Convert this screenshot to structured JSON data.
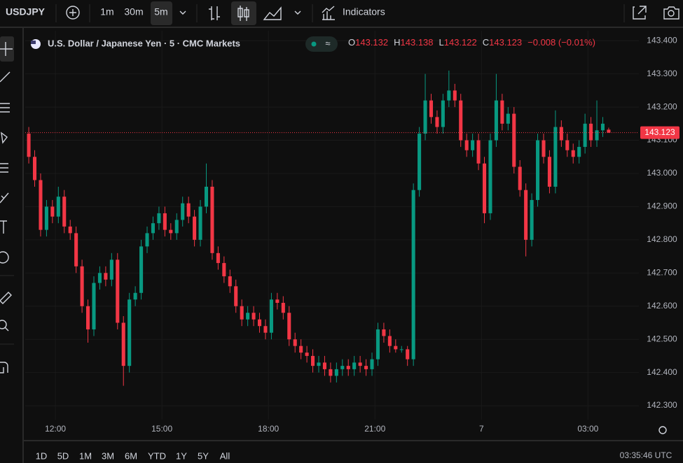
{
  "ui": {
    "symbol": "USDJPY",
    "intervals": [
      "1m",
      "30m",
      "5m"
    ],
    "indicators": "Indicators",
    "ranges": [
      "1D",
      "5D",
      "1M",
      "3M",
      "6M",
      "YTD",
      "1Y",
      "5Y",
      "All"
    ],
    "clock": "03:35:46 UTC"
  },
  "chart_data": {
    "type": "candlestick",
    "title": "U.S. Dollar / Japanese Yen · 5 · CMC Markets",
    "legend": {
      "open_label": "O",
      "open": 143.132,
      "high_label": "H",
      "high": 143.138,
      "low_label": "L",
      "low": 143.122,
      "close_label": "C",
      "close": 143.123,
      "change": "−0.008 (−0.01%)"
    },
    "last_price": 143.123,
    "up_color": "#089981",
    "down_color": "#f23645",
    "x": [
      675,
      685,
      695,
      705,
      715,
      725,
      735,
      745,
      755,
      765,
      775,
      785,
      795,
      805,
      815,
      825,
      835,
      845,
      855,
      865,
      875,
      885,
      895,
      905,
      915,
      925,
      935,
      945,
      955,
      965,
      975,
      985,
      995,
      1005,
      1015,
      1025,
      1035,
      1045,
      1055,
      1065,
      1075,
      1085,
      1095,
      1105,
      1115,
      1125,
      1135,
      1145,
      1155,
      1165,
      1175,
      1185,
      1195,
      1205,
      1215,
      1225,
      1235,
      1245,
      1255,
      1265,
      1275,
      1285,
      1295,
      1305,
      1315,
      1325,
      1335,
      1345,
      1355,
      1365,
      1375,
      1385,
      1395,
      1405,
      1415,
      1425,
      1435,
      1445,
      1455,
      1465,
      1475,
      1485,
      1495,
      1505,
      1515,
      1525,
      1535,
      1545,
      1555,
      1565,
      1575,
      1585,
      1595,
      1605,
      1615,
      1625,
      1635,
      1645,
      1655
    ],
    "open": [
      143.12,
      143.05,
      142.98,
      142.83,
      142.9,
      142.87,
      142.93,
      142.84,
      142.82,
      142.72,
      142.6,
      142.53,
      142.67,
      142.7,
      142.68,
      142.74,
      142.55,
      142.42,
      142.62,
      142.64,
      142.78,
      142.82,
      142.85,
      142.88,
      142.83,
      142.82,
      142.86,
      142.91,
      142.87,
      142.8,
      142.9,
      142.96,
      142.76,
      142.73,
      142.69,
      142.66,
      142.6,
      142.56,
      142.58,
      142.56,
      142.54,
      142.52,
      142.62,
      142.61,
      142.58,
      142.5,
      142.48,
      142.46,
      142.45,
      142.42,
      142.43,
      142.41,
      142.39,
      142.41,
      142.42,
      142.41,
      142.43,
      142.42,
      142.41,
      142.44,
      142.53,
      142.51,
      142.48,
      142.47,
      142.47,
      142.44,
      142.95,
      143.12,
      143.22,
      143.17,
      143.14,
      143.22,
      143.25,
      143.22,
      143.1,
      143.07,
      143.1,
      143.03,
      142.88,
      143.1,
      143.22,
      143.15,
      143.18,
      143.02,
      142.95,
      142.8,
      142.92,
      143.1,
      143.05,
      142.96,
      143.14,
      143.1,
      143.07,
      143.05,
      143.08,
      143.15,
      143.1,
      143.13,
      143.132
    ],
    "high": [
      143.14,
      143.07,
      143.0,
      142.92,
      142.92,
      142.96,
      142.95,
      142.86,
      142.84,
      142.74,
      142.62,
      142.69,
      142.72,
      142.72,
      142.76,
      142.76,
      142.57,
      142.64,
      142.66,
      142.8,
      142.84,
      142.87,
      142.9,
      142.9,
      142.85,
      142.88,
      142.93,
      142.93,
      142.89,
      142.92,
      143.03,
      142.98,
      142.78,
      142.75,
      142.71,
      142.68,
      142.62,
      142.6,
      142.6,
      142.58,
      142.56,
      142.64,
      142.64,
      142.63,
      142.6,
      142.52,
      142.5,
      142.48,
      142.47,
      142.45,
      142.45,
      142.43,
      142.43,
      142.44,
      142.44,
      142.45,
      142.45,
      142.44,
      142.46,
      142.55,
      142.55,
      142.53,
      142.5,
      142.48,
      142.48,
      142.97,
      143.14,
      143.3,
      143.24,
      143.19,
      143.24,
      143.31,
      143.27,
      143.24,
      143.12,
      143.12,
      143.12,
      143.05,
      143.12,
      143.3,
      143.24,
      143.2,
      143.2,
      143.04,
      142.97,
      142.94,
      143.12,
      143.12,
      143.07,
      143.19,
      143.16,
      143.12,
      143.09,
      143.1,
      143.18,
      143.17,
      143.22,
      143.17,
      143.138
    ],
    "low": [
      143.03,
      142.96,
      142.81,
      142.81,
      142.85,
      142.85,
      142.82,
      142.8,
      142.7,
      142.58,
      142.49,
      142.51,
      142.65,
      142.66,
      142.66,
      142.53,
      142.36,
      142.4,
      142.6,
      142.62,
      142.76,
      142.8,
      142.83,
      142.81,
      142.8,
      142.8,
      142.84,
      142.85,
      142.78,
      142.78,
      142.88,
      142.74,
      142.71,
      142.67,
      142.64,
      142.58,
      142.54,
      142.54,
      142.54,
      142.52,
      142.5,
      142.5,
      142.59,
      142.56,
      142.48,
      142.46,
      142.44,
      142.43,
      142.4,
      142.4,
      142.39,
      142.37,
      142.37,
      142.39,
      142.39,
      142.39,
      142.4,
      142.39,
      142.39,
      142.42,
      142.49,
      142.46,
      142.46,
      142.46,
      142.42,
      142.42,
      142.93,
      143.1,
      143.15,
      143.12,
      143.12,
      143.2,
      143.2,
      143.08,
      143.05,
      143.05,
      143.01,
      142.85,
      142.86,
      143.08,
      143.13,
      143.13,
      143.0,
      142.93,
      142.75,
      142.78,
      142.9,
      143.03,
      142.94,
      142.94,
      143.08,
      143.05,
      143.03,
      143.03,
      143.06,
      143.08,
      143.08,
      143.11,
      143.122
    ],
    "close": [
      143.05,
      142.98,
      142.83,
      142.9,
      142.87,
      142.93,
      142.84,
      142.82,
      142.72,
      142.6,
      142.53,
      142.67,
      142.7,
      142.68,
      142.74,
      142.55,
      142.42,
      142.62,
      142.64,
      142.78,
      142.82,
      142.85,
      142.88,
      142.83,
      142.82,
      142.86,
      142.91,
      142.87,
      142.8,
      142.9,
      142.96,
      142.76,
      142.73,
      142.69,
      142.66,
      142.6,
      142.56,
      142.58,
      142.56,
      142.54,
      142.52,
      142.62,
      142.61,
      142.58,
      142.5,
      142.48,
      142.46,
      142.45,
      142.42,
      142.43,
      142.41,
      142.39,
      142.41,
      142.42,
      142.41,
      142.43,
      142.42,
      142.41,
      142.44,
      142.53,
      142.51,
      142.48,
      142.47,
      142.47,
      142.44,
      142.95,
      143.12,
      143.22,
      143.17,
      143.14,
      143.22,
      143.25,
      143.22,
      143.1,
      143.07,
      143.1,
      143.03,
      142.88,
      143.1,
      143.22,
      143.15,
      143.18,
      143.02,
      142.95,
      142.8,
      142.92,
      143.1,
      143.05,
      142.96,
      143.14,
      143.1,
      143.07,
      143.05,
      143.08,
      143.15,
      143.1,
      143.13,
      143.15,
      143.123
    ],
    "xlim": [
      669,
      1706
    ],
    "xticks": [
      {
        "value": 720,
        "label": "12:00"
      },
      {
        "value": 900,
        "label": "15:00"
      },
      {
        "value": 1080,
        "label": "18:00"
      },
      {
        "value": 1260,
        "label": "21:00"
      },
      {
        "value": 1440,
        "label": "7"
      },
      {
        "value": 1620,
        "label": "03:00"
      }
    ],
    "ylim": [
      142.258,
      143.43
    ],
    "yticks": [
      {
        "value": 142.3,
        "label": "142.300"
      },
      {
        "value": 142.4,
        "label": "142.400"
      },
      {
        "value": 142.5,
        "label": "142.500"
      },
      {
        "value": 142.6,
        "label": "142.600"
      },
      {
        "value": 142.7,
        "label": "142.700"
      },
      {
        "value": 142.8,
        "label": "142.800"
      },
      {
        "value": 142.9,
        "label": "142.900"
      },
      {
        "value": 143.0,
        "label": "143.000"
      },
      {
        "value": 143.1,
        "label": "143.100"
      },
      {
        "value": 143.2,
        "label": "143.200"
      },
      {
        "value": 143.3,
        "label": "143.300"
      },
      {
        "value": 143.4,
        "label": "143.400"
      }
    ],
    "grid": true
  }
}
